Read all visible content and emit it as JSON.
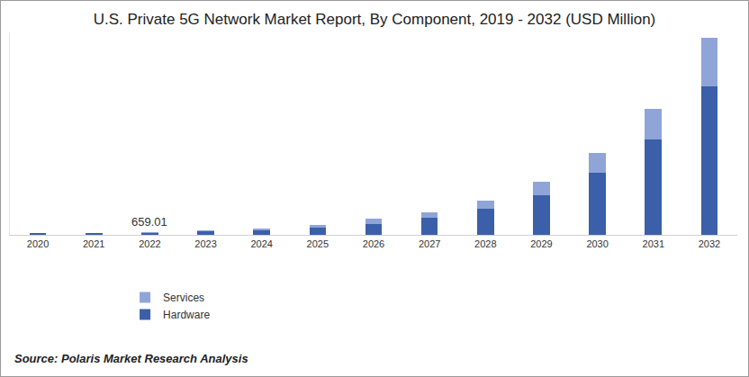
{
  "chart_data": {
    "type": "bar",
    "title": "U.S. Private 5G Network Market Report, By Component, 2019 - 2032 (USD Million)",
    "categories": [
      "2020",
      "2021",
      "2022",
      "2023",
      "2024",
      "2025",
      "2026",
      "2027",
      "2028",
      "2029",
      "2030",
      "2031",
      "2032"
    ],
    "series": [
      {
        "name": "Hardware",
        "color": "#3b5fa9",
        "values": [
          330,
          400,
          495,
          770,
          1100,
          1760,
          2640,
          3960,
          6160,
          9460,
          14740,
          22660,
          35200
        ]
      },
      {
        "name": "Services",
        "color": "#8fa5d8",
        "values": [
          110,
          130,
          164.01,
          330,
          440,
          660,
          1100,
          1320,
          1980,
          3080,
          4620,
          7260,
          11440
        ]
      }
    ],
    "stacked": true,
    "ylim": [
      0,
      48000
    ],
    "tick_labels": "x",
    "grid": false,
    "legend": "bottom",
    "annotations": [
      {
        "x": "2022",
        "y": 659.01,
        "text": "659.01"
      }
    ],
    "source": "Source: Polaris Market Research Analysis"
  }
}
